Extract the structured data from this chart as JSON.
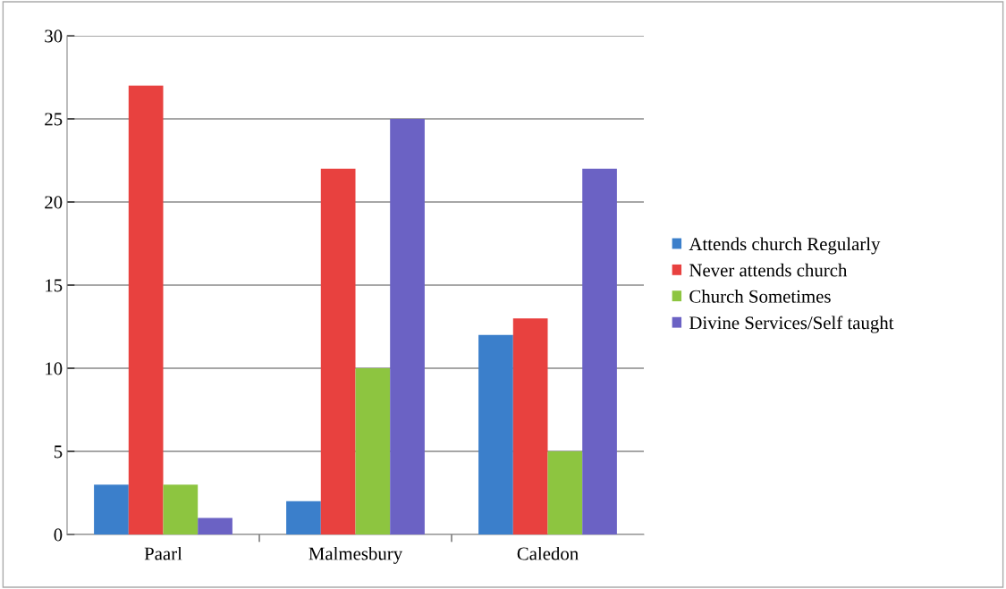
{
  "chart_data": {
    "type": "bar",
    "categories": [
      "Paarl",
      "Malmesbury",
      "Caledon"
    ],
    "series": [
      {
        "name": "Attends church Regularly",
        "color": "#3b7fcb",
        "values": [
          3,
          2,
          12
        ]
      },
      {
        "name": "Never attends church",
        "color": "#e8413f",
        "values": [
          27,
          22,
          13
        ]
      },
      {
        "name": "Church Sometimes",
        "color": "#8dc540",
        "values": [
          3,
          10,
          5
        ]
      },
      {
        "name": "Divine Services/Self taught",
        "color": "#6b62c4",
        "values": [
          1,
          25,
          22
        ]
      }
    ],
    "ylim": [
      0,
      30
    ],
    "yticks": [
      0,
      5,
      10,
      15,
      20,
      25,
      30
    ],
    "grid": "y",
    "legend": "right"
  }
}
